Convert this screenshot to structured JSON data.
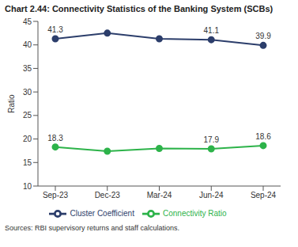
{
  "chart_data": {
    "type": "line",
    "title": "Chart 2.44: Connectivity Statistics of the Banking System (SCBs)",
    "y_label": "Ratio",
    "source": "Sources: RBI supervisory returns and staff calculations.",
    "categories": [
      "Sep-23",
      "Dec-23",
      "Mar-24",
      "Jun-24",
      "Sep-24"
    ],
    "series": [
      {
        "name": "Cluster Coefficient",
        "color": "#2c3e6b",
        "marker": "circle",
        "values": [
          41.3,
          42.5,
          41.3,
          41.1,
          39.9
        ],
        "value_labels": [
          "41.3",
          null,
          null,
          "41.1",
          "39.9"
        ]
      },
      {
        "name": "Connectivity Ratio",
        "color": "#2db34a",
        "marker": "circle",
        "values": [
          18.3,
          17.4,
          18.0,
          17.9,
          18.6
        ],
        "value_labels": [
          "18.3",
          null,
          null,
          "17.9",
          "18.6"
        ]
      }
    ],
    "ylim": [
      10,
      45
    ],
    "yticks": [
      10,
      15,
      20,
      25,
      30,
      35,
      40,
      45
    ],
    "grid": false,
    "data_labels": true,
    "legend": "bottom"
  }
}
